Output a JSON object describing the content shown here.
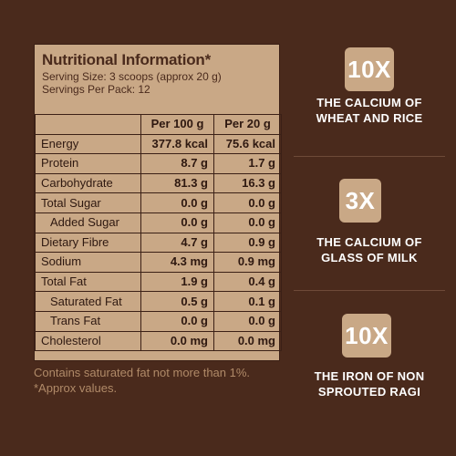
{
  "nutrition": {
    "title": "Nutritional Information*",
    "serving_size": "Serving Size: 3 scoops (approx 20 g)",
    "servings_per_pack": "Servings Per Pack: 12",
    "headers": [
      "",
      "Per 100 g",
      "Per 20 g"
    ],
    "rows": [
      {
        "nutrient": "Energy",
        "per100": "377.8 kcal",
        "per20": "75.6 kcal"
      },
      {
        "nutrient": "Protein",
        "per100": "8.7 g",
        "per20": "1.7 g"
      },
      {
        "nutrient": "Carbohydrate",
        "per100": "81.3 g",
        "per20": "16.3 g"
      },
      {
        "nutrient": "Total Sugar",
        "per100": "0.0 g",
        "per20": "0.0 g"
      },
      {
        "nutrient": "Added Sugar",
        "per100": "0.0 g",
        "per20": "0.0 g"
      },
      {
        "nutrient": "Dietary Fibre",
        "per100": "4.7 g",
        "per20": "0.9 g"
      },
      {
        "nutrient": "Sodium",
        "per100": "4.3 mg",
        "per20": "0.9 mg"
      },
      {
        "nutrient": "Total Fat",
        "per100": "1.9 g",
        "per20": "0.4 g"
      },
      {
        "nutrient": "Saturated Fat",
        "per100": "0.5 g",
        "per20": "0.1 g"
      },
      {
        "nutrient": "Trans Fat",
        "per100": "0.0 g",
        "per20": "0.0 g"
      },
      {
        "nutrient": "Cholesterol",
        "per100": "0.0 mg",
        "per20": "0.0 mg"
      }
    ],
    "footnote_1": "Contains saturated fat not more than 1%.",
    "footnote_2": "*Approx values."
  },
  "claims": [
    {
      "badge": "10X",
      "line1": "THE CALCIUM OF",
      "line2": "WHEAT AND RICE"
    },
    {
      "badge": "3X",
      "line1": "THE CALCIUM OF",
      "line2": "GLASS OF MILK"
    },
    {
      "badge": "10X",
      "line1": "THE IRON OF NON",
      "line2": "SPROUTED RAGI"
    }
  ],
  "colors": {
    "background": "#4a2a1c",
    "panel": "#c9a886",
    "text_dark": "#2e1810",
    "footnote": "#b08a68",
    "claim_text": "#ffffff"
  }
}
